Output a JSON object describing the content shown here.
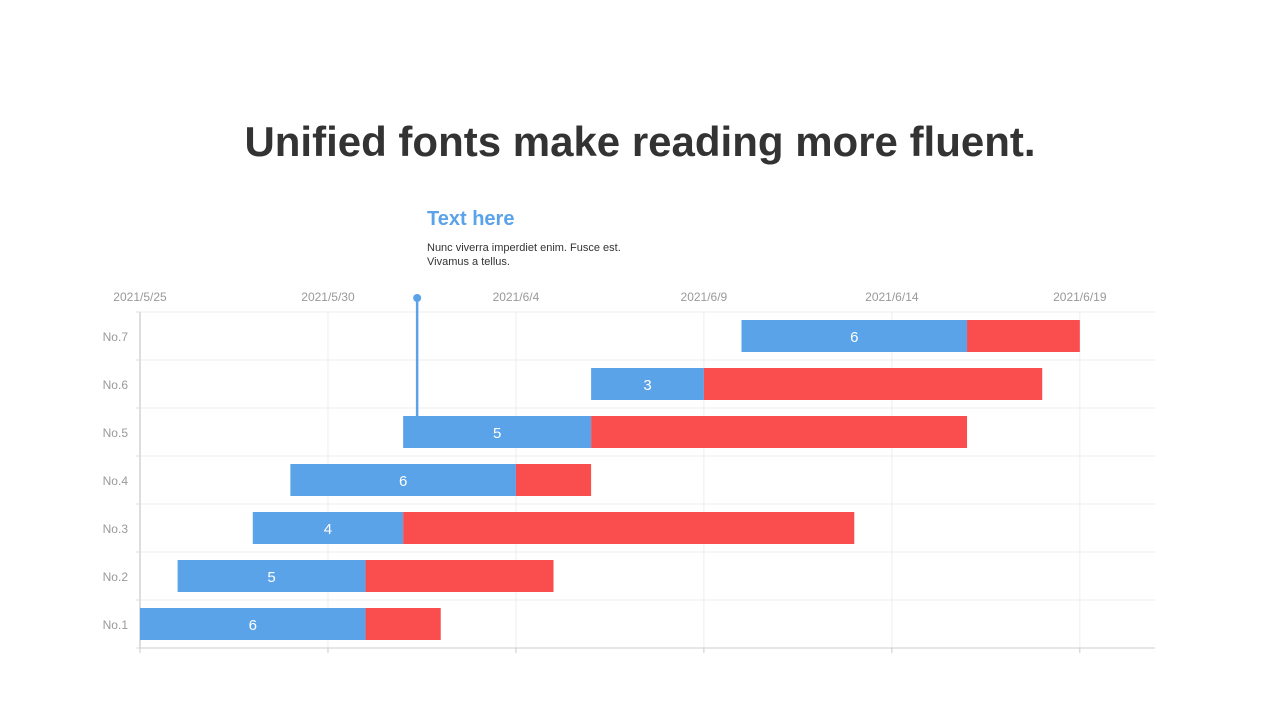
{
  "title": "Unified fonts make reading more fluent.",
  "annotation": {
    "title": "Text here",
    "body": "Nunc viverra imperdiet enim. Fusce est. Vivamus a tellus.",
    "date": "2021/6/1"
  },
  "chart_data": {
    "type": "bar",
    "orientation": "horizontal-stacked-gantt",
    "x_axis": {
      "type": "date",
      "ticks": [
        "2021/5/25",
        "2021/5/30",
        "2021/6/4",
        "2021/6/9",
        "2021/6/14",
        "2021/6/19"
      ],
      "range": [
        "2021/5/25",
        "2021/6/21"
      ],
      "position": "top"
    },
    "categories": [
      "No.1",
      "No.2",
      "No.3",
      "No.4",
      "No.5",
      "No.6",
      "No.7"
    ],
    "start": [
      "2021/5/25",
      "2021/5/26",
      "2021/5/28",
      "2021/5/29",
      "2021/6/1",
      "2021/6/6",
      "2021/6/10"
    ],
    "series": [
      {
        "values": [
          6,
          5,
          4,
          6,
          5,
          3,
          6
        ],
        "color": "#5ba3e8",
        "labels_shown": true
      },
      {
        "values": [
          2,
          5,
          12,
          2,
          10,
          9,
          3
        ],
        "color": "#fa4d4d"
      }
    ],
    "grid": true
  }
}
